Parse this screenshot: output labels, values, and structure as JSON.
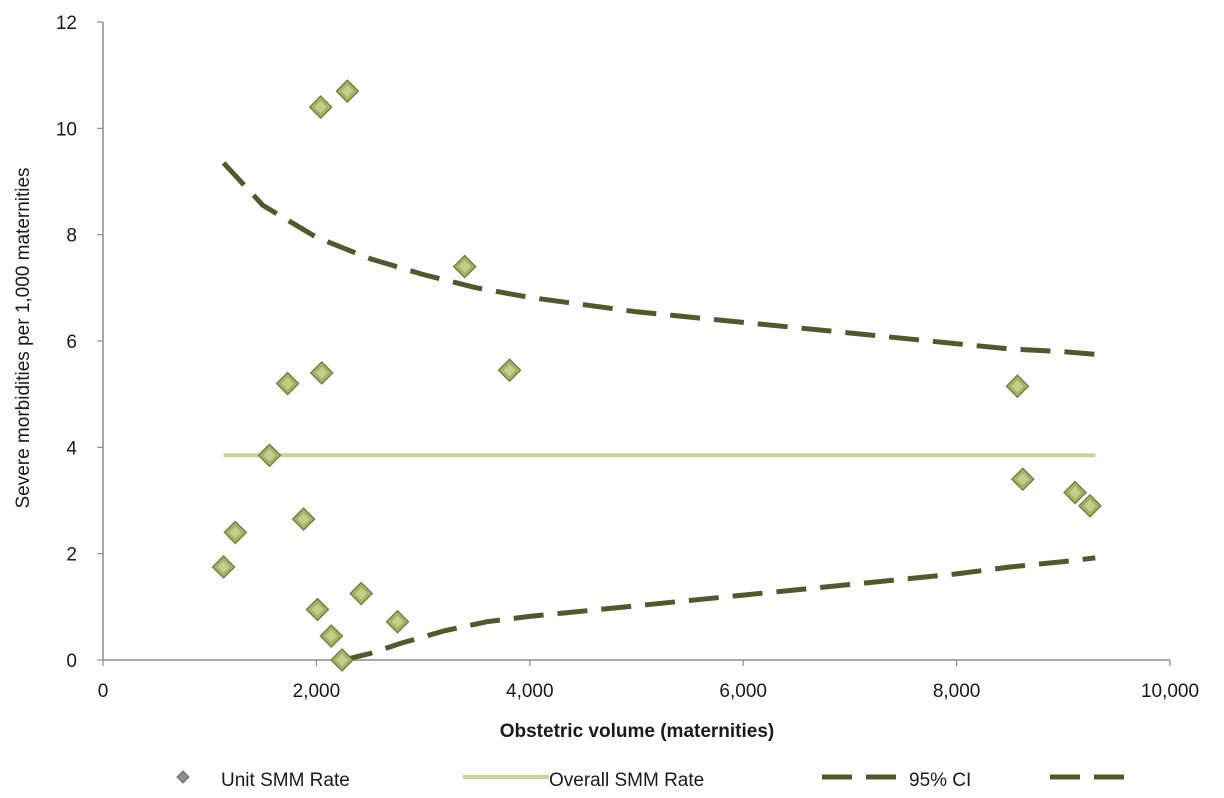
{
  "chart_data": {
    "type": "scatter",
    "title": "",
    "xlabel": "Obstetric volume (maternities)",
    "ylabel": "Severe morbidities per 1,000  maternities",
    "xlim": [
      0,
      10000
    ],
    "ylim": [
      0,
      12
    ],
    "x_ticks": [
      0,
      2000,
      4000,
      6000,
      8000,
      10000
    ],
    "x_tick_labels": [
      "0",
      "2,000",
      "4,000",
      "6,000",
      "8,000",
      "10,000"
    ],
    "y_ticks": [
      0,
      2,
      4,
      6,
      8,
      10,
      12
    ],
    "y_tick_labels": [
      "0",
      "2",
      "4",
      "6",
      "8",
      "10",
      "12"
    ],
    "grid": false,
    "legend_position": "bottom",
    "series": [
      {
        "name": "Unit SMM Rate",
        "kind": "scatter",
        "marker": "diamond",
        "color": "#9aa75a",
        "points": [
          {
            "x": 1130,
            "y": 1.75
          },
          {
            "x": 1240,
            "y": 2.4
          },
          {
            "x": 1560,
            "y": 3.85
          },
          {
            "x": 1730,
            "y": 5.2
          },
          {
            "x": 1880,
            "y": 2.65
          },
          {
            "x": 2010,
            "y": 0.95
          },
          {
            "x": 2040,
            "y": 10.4
          },
          {
            "x": 2050,
            "y": 5.4
          },
          {
            "x": 2140,
            "y": 0.45
          },
          {
            "x": 2240,
            "y": 0.0
          },
          {
            "x": 2290,
            "y": 10.7
          },
          {
            "x": 2420,
            "y": 1.25
          },
          {
            "x": 2760,
            "y": 0.72
          },
          {
            "x": 3390,
            "y": 7.4
          },
          {
            "x": 3810,
            "y": 5.45
          },
          {
            "x": 8570,
            "y": 5.15
          },
          {
            "x": 8620,
            "y": 3.4
          },
          {
            "x": 9110,
            "y": 3.15
          },
          {
            "x": 9250,
            "y": 2.9
          }
        ]
      },
      {
        "name": "Overall SMM Rate",
        "kind": "line",
        "color": "#c9d3a0",
        "x": [
          1130,
          9300
        ],
        "y": [
          3.85,
          3.85
        ]
      },
      {
        "name": "95% CI",
        "kind": "line",
        "dashed": true,
        "color": "#4f5a2c",
        "x": [
          1130,
          1500,
          2000,
          2500,
          3000,
          3500,
          4000,
          5000,
          6000,
          7000,
          8000,
          8500,
          9000,
          9300
        ],
        "y": [
          9.35,
          8.55,
          7.95,
          7.55,
          7.25,
          7.0,
          6.82,
          6.55,
          6.35,
          6.15,
          5.95,
          5.85,
          5.8,
          5.75
        ]
      },
      {
        "name": "",
        "kind": "line",
        "dashed": true,
        "color": "#4f5a2c",
        "x": [
          2250,
          2500,
          2800,
          3200,
          3600,
          4000,
          5000,
          6000,
          7000,
          8000,
          8500,
          9000,
          9300
        ],
        "y": [
          0.0,
          0.12,
          0.32,
          0.55,
          0.72,
          0.82,
          1.02,
          1.22,
          1.42,
          1.62,
          1.75,
          1.85,
          1.92
        ]
      }
    ]
  },
  "legend": [
    {
      "label": "Unit SMM Rate",
      "icon": "diamond-marker-icon"
    },
    {
      "label": "Overall SMM Rate",
      "icon": "solid-line-icon"
    },
    {
      "label": "95% CI",
      "icon": "dashed-line-icon"
    },
    {
      "label": "",
      "icon": "dashed-line-icon"
    }
  ]
}
